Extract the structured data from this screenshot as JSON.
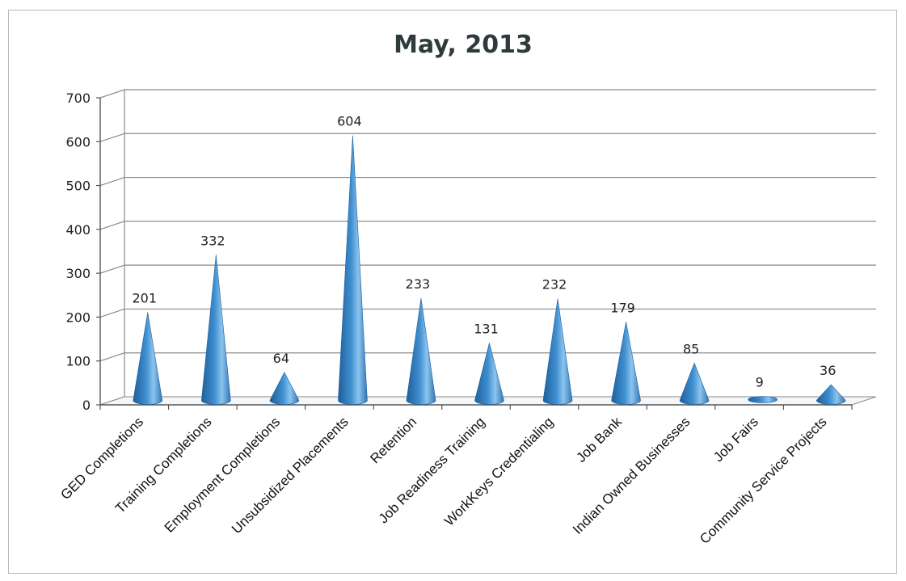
{
  "chart_data": {
    "type": "bar",
    "title": "May, 2013",
    "xlabel": "",
    "ylabel": "",
    "ylim": [
      0,
      700
    ],
    "yticks": [
      0,
      100,
      200,
      300,
      400,
      500,
      600,
      700
    ],
    "grid": true,
    "legend": "none",
    "categories": [
      "GED Completions",
      "Training Completions",
      "Employment Completions",
      "Unsubsidized Placements",
      "Retention",
      "Job Readiness Training",
      "WorkKeys Credentialing",
      "Job Bank",
      "Indian Owned Businesses",
      "Job Fairs",
      "Community Service Projects"
    ],
    "values": [
      201,
      332,
      64,
      604,
      233,
      131,
      232,
      179,
      85,
      9,
      36
    ],
    "colors": {
      "cone_dark": "#1f5f9c",
      "cone_mid": "#3f8fd0",
      "cone_light": "#8cc4ee",
      "gridline": "#8a8a8a",
      "axis": "#555555"
    }
  }
}
